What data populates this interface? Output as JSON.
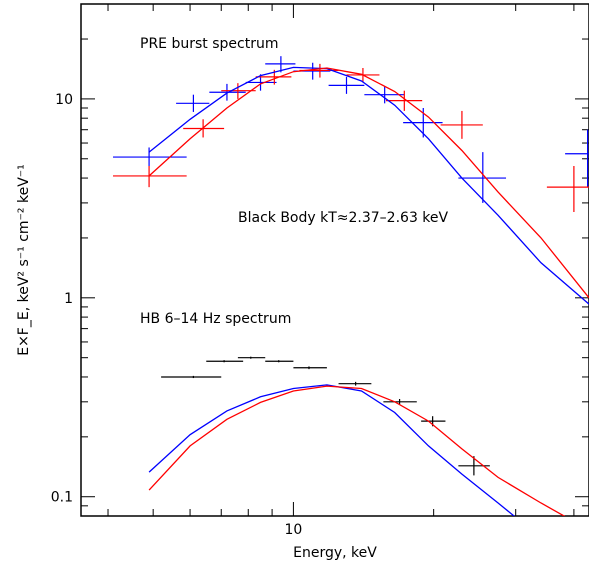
{
  "chart_data": {
    "type": "scatter",
    "xscale": "log",
    "yscale": "log",
    "xlim": [
      3.5,
      43.1
    ],
    "ylim": [
      0.08,
      30
    ],
    "xlabel": "Energy, keV",
    "ylabel": "E×F_E, keV² s⁻¹ cm⁻² keV⁻¹",
    "x_tick_labels": [
      {
        "value": 10,
        "label": "10"
      }
    ],
    "y_tick_labels": [
      {
        "value": 0.1,
        "label": "0.1"
      },
      {
        "value": 1,
        "label": "1"
      },
      {
        "value": 10,
        "label": "10"
      }
    ],
    "annotations": [
      {
        "text": "PRE burst spectrum"
      },
      {
        "text": "Black Body kT≈2.37–2.63 keV"
      },
      {
        "text": "HB 6–14 Hz spectrum"
      }
    ],
    "series": [
      {
        "kind": "points",
        "color": "#0000ff",
        "points": [
          {
            "x": 4.9,
            "xlo": 4.1,
            "xhi": 5.9,
            "y": 5.1,
            "ylo": 4.6,
            "yhi": 5.7
          },
          {
            "x": 6.1,
            "xlo": 5.6,
            "xhi": 6.6,
            "y": 9.5,
            "ylo": 8.6,
            "yhi": 10.5
          },
          {
            "x": 7.2,
            "xlo": 6.6,
            "xhi": 7.9,
            "y": 10.8,
            "ylo": 9.8,
            "yhi": 11.9
          },
          {
            "x": 8.5,
            "xlo": 7.9,
            "xhi": 9.2,
            "y": 12.1,
            "ylo": 11.0,
            "yhi": 13.3
          },
          {
            "x": 9.4,
            "xlo": 8.7,
            "xhi": 10.1,
            "y": 15.0,
            "ylo": 13.6,
            "yhi": 16.4
          },
          {
            "x": 11.0,
            "xlo": 10.0,
            "xhi": 12.0,
            "y": 13.8,
            "ylo": 12.5,
            "yhi": 15.2
          },
          {
            "x": 13.0,
            "xlo": 11.9,
            "xhi": 14.2,
            "y": 11.7,
            "ylo": 10.6,
            "yhi": 12.9
          },
          {
            "x": 15.7,
            "xlo": 14.2,
            "xhi": 17.3,
            "y": 10.5,
            "ylo": 9.5,
            "yhi": 11.6
          },
          {
            "x": 19.0,
            "xlo": 17.2,
            "xhi": 20.9,
            "y": 7.6,
            "ylo": 6.4,
            "yhi": 9.0
          },
          {
            "x": 25.5,
            "xlo": 22.6,
            "xhi": 28.6,
            "y": 4.0,
            "ylo": 3.0,
            "yhi": 5.4
          },
          {
            "x": 42.8,
            "xlo": 38.3,
            "xhi": 43.1,
            "y": 5.3,
            "ylo": 3.6,
            "yhi": 7.0
          }
        ]
      },
      {
        "kind": "points",
        "color": "#ff0000",
        "points": [
          {
            "x": 4.9,
            "xlo": 4.1,
            "xhi": 5.9,
            "y": 4.1,
            "ylo": 3.6,
            "yhi": 4.6
          },
          {
            "x": 6.4,
            "xlo": 5.8,
            "xhi": 7.1,
            "y": 7.1,
            "ylo": 6.4,
            "yhi": 7.9
          },
          {
            "x": 7.6,
            "xlo": 7.0,
            "xhi": 8.3,
            "y": 11.0,
            "ylo": 10.0,
            "yhi": 12.0
          },
          {
            "x": 9.1,
            "xlo": 8.3,
            "xhi": 9.9,
            "y": 12.9,
            "ylo": 11.8,
            "yhi": 14.0
          },
          {
            "x": 11.4,
            "xlo": 10.3,
            "xhi": 12.5,
            "y": 13.9,
            "ylo": 12.8,
            "yhi": 15.0
          },
          {
            "x": 14.1,
            "xlo": 13.0,
            "xhi": 15.3,
            "y": 13.2,
            "ylo": 12.1,
            "yhi": 14.3
          },
          {
            "x": 17.3,
            "xlo": 15.8,
            "xhi": 18.9,
            "y": 9.8,
            "ylo": 8.7,
            "yhi": 11.0
          },
          {
            "x": 23.0,
            "xlo": 20.7,
            "xhi": 25.5,
            "y": 7.4,
            "ylo": 6.3,
            "yhi": 8.7
          },
          {
            "x": 40.0,
            "xlo": 35.0,
            "xhi": 43.1,
            "y": 3.6,
            "ylo": 2.7,
            "yhi": 4.6
          }
        ]
      },
      {
        "kind": "points",
        "color": "#000000",
        "points": [
          {
            "x": 6.1,
            "xlo": 5.2,
            "xhi": 7.0,
            "y": 0.4,
            "ylo": 0.395,
            "yhi": 0.405
          },
          {
            "x": 7.1,
            "xlo": 6.5,
            "xhi": 7.8,
            "y": 0.48,
            "ylo": 0.474,
            "yhi": 0.486
          },
          {
            "x": 8.1,
            "xlo": 7.6,
            "xhi": 8.7,
            "y": 0.5,
            "ylo": 0.494,
            "yhi": 0.506
          },
          {
            "x": 9.3,
            "xlo": 8.7,
            "xhi": 10.0,
            "y": 0.48,
            "ylo": 0.474,
            "yhi": 0.486
          },
          {
            "x": 10.8,
            "xlo": 10.0,
            "xhi": 11.8,
            "y": 0.445,
            "ylo": 0.438,
            "yhi": 0.452
          },
          {
            "x": 13.6,
            "xlo": 12.5,
            "xhi": 14.7,
            "y": 0.37,
            "ylo": 0.362,
            "yhi": 0.378
          },
          {
            "x": 16.9,
            "xlo": 15.6,
            "xhi": 18.4,
            "y": 0.3,
            "ylo": 0.29,
            "yhi": 0.31
          },
          {
            "x": 19.9,
            "xlo": 18.8,
            "xhi": 21.2,
            "y": 0.24,
            "ylo": 0.226,
            "yhi": 0.254
          },
          {
            "x": 24.4,
            "xlo": 22.6,
            "xhi": 26.4,
            "y": 0.143,
            "ylo": 0.128,
            "yhi": 0.16
          }
        ]
      },
      {
        "kind": "line",
        "color": "#0000ff",
        "points": [
          [
            4.9,
            5.4
          ],
          [
            6.0,
            7.9
          ],
          [
            7.2,
            10.7
          ],
          [
            8.5,
            13.1
          ],
          [
            10.0,
            14.4
          ],
          [
            11.8,
            14.2
          ],
          [
            14.0,
            12.3
          ],
          [
            16.5,
            9.3
          ],
          [
            19.5,
            6.3
          ],
          [
            23.0,
            4.0
          ],
          [
            27.5,
            2.6
          ],
          [
            34.0,
            1.5
          ],
          [
            43.1,
            0.93
          ]
        ]
      },
      {
        "kind": "line",
        "color": "#ff0000",
        "points": [
          [
            4.9,
            4.1
          ],
          [
            6.0,
            6.3
          ],
          [
            7.2,
            9.0
          ],
          [
            8.5,
            11.9
          ],
          [
            10.0,
            13.7
          ],
          [
            11.8,
            14.3
          ],
          [
            14.0,
            13.3
          ],
          [
            16.5,
            10.9
          ],
          [
            19.5,
            8.1
          ],
          [
            23.0,
            5.5
          ],
          [
            27.5,
            3.4
          ],
          [
            34.0,
            2.0
          ],
          [
            43.1,
            1.0
          ]
        ]
      },
      {
        "kind": "line",
        "color": "#0000ff",
        "points": [
          [
            4.9,
            0.133
          ],
          [
            6.0,
            0.205
          ],
          [
            7.2,
            0.27
          ],
          [
            8.5,
            0.318
          ],
          [
            10.0,
            0.35
          ],
          [
            11.8,
            0.365
          ],
          [
            14.0,
            0.34
          ],
          [
            16.5,
            0.265
          ],
          [
            19.5,
            0.18
          ],
          [
            23.0,
            0.13
          ],
          [
            27.5,
            0.093
          ],
          [
            34.0,
            0.062
          ]
        ]
      },
      {
        "kind": "line",
        "color": "#ff0000",
        "points": [
          [
            4.9,
            0.108
          ],
          [
            6.0,
            0.18
          ],
          [
            7.2,
            0.245
          ],
          [
            8.5,
            0.298
          ],
          [
            10.0,
            0.34
          ],
          [
            11.8,
            0.36
          ],
          [
            14.0,
            0.35
          ],
          [
            16.5,
            0.3
          ],
          [
            19.5,
            0.24
          ],
          [
            23.0,
            0.174
          ],
          [
            27.5,
            0.125
          ],
          [
            34.0,
            0.093
          ],
          [
            43.1,
            0.068
          ]
        ]
      }
    ]
  }
}
